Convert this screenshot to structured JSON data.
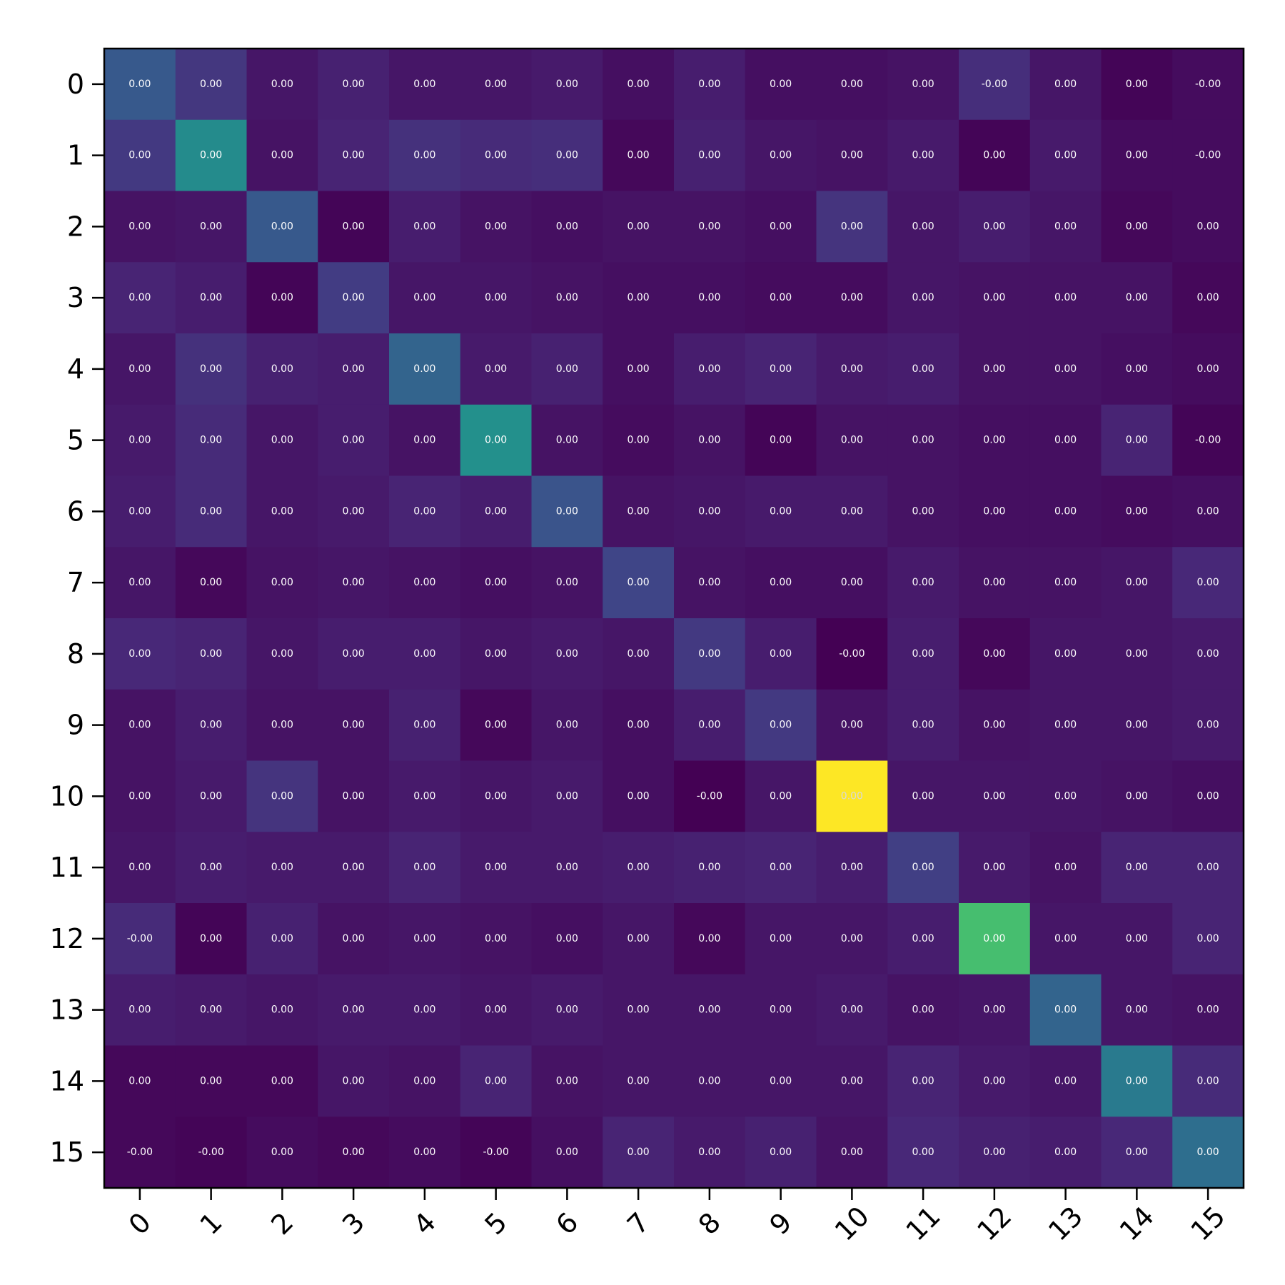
{
  "chart_data": {
    "type": "heatmap",
    "title": "",
    "xlabel": "",
    "ylabel": "",
    "x_ticks": [
      "0",
      "1",
      "2",
      "3",
      "4",
      "5",
      "6",
      "7",
      "8",
      "9",
      "10",
      "11",
      "12",
      "13",
      "14",
      "15"
    ],
    "y_ticks": [
      "0",
      "1",
      "2",
      "3",
      "4",
      "5",
      "6",
      "7",
      "8",
      "9",
      "10",
      "11",
      "12",
      "13",
      "14",
      "15"
    ],
    "colormap": "viridis",
    "colorbar": false,
    "grid": false,
    "cell_labels": [
      [
        "0.00",
        "0.00",
        "0.00",
        "0.00",
        "0.00",
        "0.00",
        "0.00",
        "0.00",
        "0.00",
        "0.00",
        "0.00",
        "0.00",
        "-0.00",
        "0.00",
        "0.00",
        "-0.00"
      ],
      [
        "0.00",
        "0.00",
        "0.00",
        "0.00",
        "0.00",
        "0.00",
        "0.00",
        "0.00",
        "0.00",
        "0.00",
        "0.00",
        "0.00",
        "0.00",
        "0.00",
        "0.00",
        "-0.00"
      ],
      [
        "0.00",
        "0.00",
        "0.00",
        "0.00",
        "0.00",
        "0.00",
        "0.00",
        "0.00",
        "0.00",
        "0.00",
        "0.00",
        "0.00",
        "0.00",
        "0.00",
        "0.00",
        "0.00"
      ],
      [
        "0.00",
        "0.00",
        "0.00",
        "0.00",
        "0.00",
        "0.00",
        "0.00",
        "0.00",
        "0.00",
        "0.00",
        "0.00",
        "0.00",
        "0.00",
        "0.00",
        "0.00",
        "0.00"
      ],
      [
        "0.00",
        "0.00",
        "0.00",
        "0.00",
        "0.00",
        "0.00",
        "0.00",
        "0.00",
        "0.00",
        "0.00",
        "0.00",
        "0.00",
        "0.00",
        "0.00",
        "0.00",
        "0.00"
      ],
      [
        "0.00",
        "0.00",
        "0.00",
        "0.00",
        "0.00",
        "0.00",
        "0.00",
        "0.00",
        "0.00",
        "0.00",
        "0.00",
        "0.00",
        "0.00",
        "0.00",
        "0.00",
        "-0.00"
      ],
      [
        "0.00",
        "0.00",
        "0.00",
        "0.00",
        "0.00",
        "0.00",
        "0.00",
        "0.00",
        "0.00",
        "0.00",
        "0.00",
        "0.00",
        "0.00",
        "0.00",
        "0.00",
        "0.00"
      ],
      [
        "0.00",
        "0.00",
        "0.00",
        "0.00",
        "0.00",
        "0.00",
        "0.00",
        "0.00",
        "0.00",
        "0.00",
        "0.00",
        "0.00",
        "0.00",
        "0.00",
        "0.00",
        "0.00"
      ],
      [
        "0.00",
        "0.00",
        "0.00",
        "0.00",
        "0.00",
        "0.00",
        "0.00",
        "0.00",
        "0.00",
        "0.00",
        "-0.00",
        "0.00",
        "0.00",
        "0.00",
        "0.00",
        "0.00"
      ],
      [
        "0.00",
        "0.00",
        "0.00",
        "0.00",
        "0.00",
        "0.00",
        "0.00",
        "0.00",
        "0.00",
        "0.00",
        "0.00",
        "0.00",
        "0.00",
        "0.00",
        "0.00",
        "0.00"
      ],
      [
        "0.00",
        "0.00",
        "0.00",
        "0.00",
        "0.00",
        "0.00",
        "0.00",
        "0.00",
        "-0.00",
        "0.00",
        "0.00",
        "0.00",
        "0.00",
        "0.00",
        "0.00",
        "0.00"
      ],
      [
        "0.00",
        "0.00",
        "0.00",
        "0.00",
        "0.00",
        "0.00",
        "0.00",
        "0.00",
        "0.00",
        "0.00",
        "0.00",
        "0.00",
        "0.00",
        "0.00",
        "0.00",
        "0.00"
      ],
      [
        "-0.00",
        "0.00",
        "0.00",
        "0.00",
        "0.00",
        "0.00",
        "0.00",
        "0.00",
        "0.00",
        "0.00",
        "0.00",
        "0.00",
        "0.00",
        "0.00",
        "0.00",
        "0.00"
      ],
      [
        "0.00",
        "0.00",
        "0.00",
        "0.00",
        "0.00",
        "0.00",
        "0.00",
        "0.00",
        "0.00",
        "0.00",
        "0.00",
        "0.00",
        "0.00",
        "0.00",
        "0.00",
        "0.00"
      ],
      [
        "0.00",
        "0.00",
        "0.00",
        "0.00",
        "0.00",
        "0.00",
        "0.00",
        "0.00",
        "0.00",
        "0.00",
        "0.00",
        "0.00",
        "0.00",
        "0.00",
        "0.00",
        "0.00"
      ],
      [
        "-0.00",
        "-0.00",
        "0.00",
        "0.00",
        "0.00",
        "-0.00",
        "0.00",
        "0.00",
        "0.00",
        "0.00",
        "0.00",
        "0.00",
        "0.00",
        "0.00",
        "0.00",
        "0.00"
      ]
    ],
    "intensity": [
      [
        0.28,
        0.16,
        0.06,
        0.09,
        0.06,
        0.06,
        0.07,
        0.04,
        0.08,
        0.04,
        0.04,
        0.05,
        0.13,
        0.06,
        0.01,
        0.03
      ],
      [
        0.17,
        0.48,
        0.05,
        0.1,
        0.14,
        0.12,
        0.13,
        0.02,
        0.09,
        0.06,
        0.05,
        0.07,
        0.01,
        0.07,
        0.03,
        0.03
      ],
      [
        0.05,
        0.06,
        0.28,
        0.01,
        0.08,
        0.05,
        0.04,
        0.05,
        0.05,
        0.04,
        0.15,
        0.06,
        0.08,
        0.06,
        0.02,
        0.03
      ],
      [
        0.1,
        0.08,
        0.01,
        0.18,
        0.06,
        0.06,
        0.05,
        0.04,
        0.04,
        0.03,
        0.03,
        0.06,
        0.05,
        0.05,
        0.05,
        0.02
      ],
      [
        0.06,
        0.14,
        0.09,
        0.08,
        0.32,
        0.07,
        0.09,
        0.04,
        0.08,
        0.1,
        0.07,
        0.08,
        0.05,
        0.05,
        0.04,
        0.03
      ],
      [
        0.07,
        0.12,
        0.06,
        0.08,
        0.05,
        0.5,
        0.05,
        0.03,
        0.05,
        0.01,
        0.05,
        0.05,
        0.04,
        0.04,
        0.1,
        0.01
      ],
      [
        0.08,
        0.12,
        0.06,
        0.07,
        0.1,
        0.08,
        0.26,
        0.05,
        0.06,
        0.07,
        0.07,
        0.05,
        0.04,
        0.04,
        0.03,
        0.04
      ],
      [
        0.06,
        0.02,
        0.05,
        0.06,
        0.05,
        0.04,
        0.05,
        0.21,
        0.05,
        0.04,
        0.04,
        0.07,
        0.05,
        0.05,
        0.06,
        0.11
      ],
      [
        0.11,
        0.1,
        0.06,
        0.08,
        0.08,
        0.06,
        0.07,
        0.06,
        0.17,
        0.08,
        0.0,
        0.08,
        0.02,
        0.06,
        0.06,
        0.07
      ],
      [
        0.05,
        0.08,
        0.05,
        0.05,
        0.09,
        0.02,
        0.06,
        0.04,
        0.08,
        0.17,
        0.05,
        0.08,
        0.05,
        0.06,
        0.06,
        0.07
      ],
      [
        0.05,
        0.07,
        0.15,
        0.05,
        0.07,
        0.06,
        0.07,
        0.04,
        0.0,
        0.06,
        1.0,
        0.06,
        0.06,
        0.06,
        0.05,
        0.04
      ],
      [
        0.06,
        0.08,
        0.07,
        0.07,
        0.1,
        0.07,
        0.07,
        0.08,
        0.09,
        0.1,
        0.08,
        0.19,
        0.07,
        0.05,
        0.1,
        0.1
      ],
      [
        0.12,
        0.01,
        0.09,
        0.05,
        0.06,
        0.05,
        0.04,
        0.06,
        0.02,
        0.06,
        0.06,
        0.08,
        0.7,
        0.06,
        0.06,
        0.1
      ],
      [
        0.08,
        0.07,
        0.06,
        0.07,
        0.07,
        0.06,
        0.07,
        0.06,
        0.06,
        0.06,
        0.07,
        0.05,
        0.06,
        0.32,
        0.06,
        0.05
      ],
      [
        0.02,
        0.02,
        0.02,
        0.06,
        0.05,
        0.1,
        0.05,
        0.06,
        0.06,
        0.06,
        0.06,
        0.1,
        0.07,
        0.06,
        0.41,
        0.12
      ],
      [
        0.02,
        0.01,
        0.03,
        0.02,
        0.03,
        0.01,
        0.04,
        0.1,
        0.07,
        0.09,
        0.05,
        0.11,
        0.09,
        0.08,
        0.11,
        0.36
      ]
    ]
  }
}
